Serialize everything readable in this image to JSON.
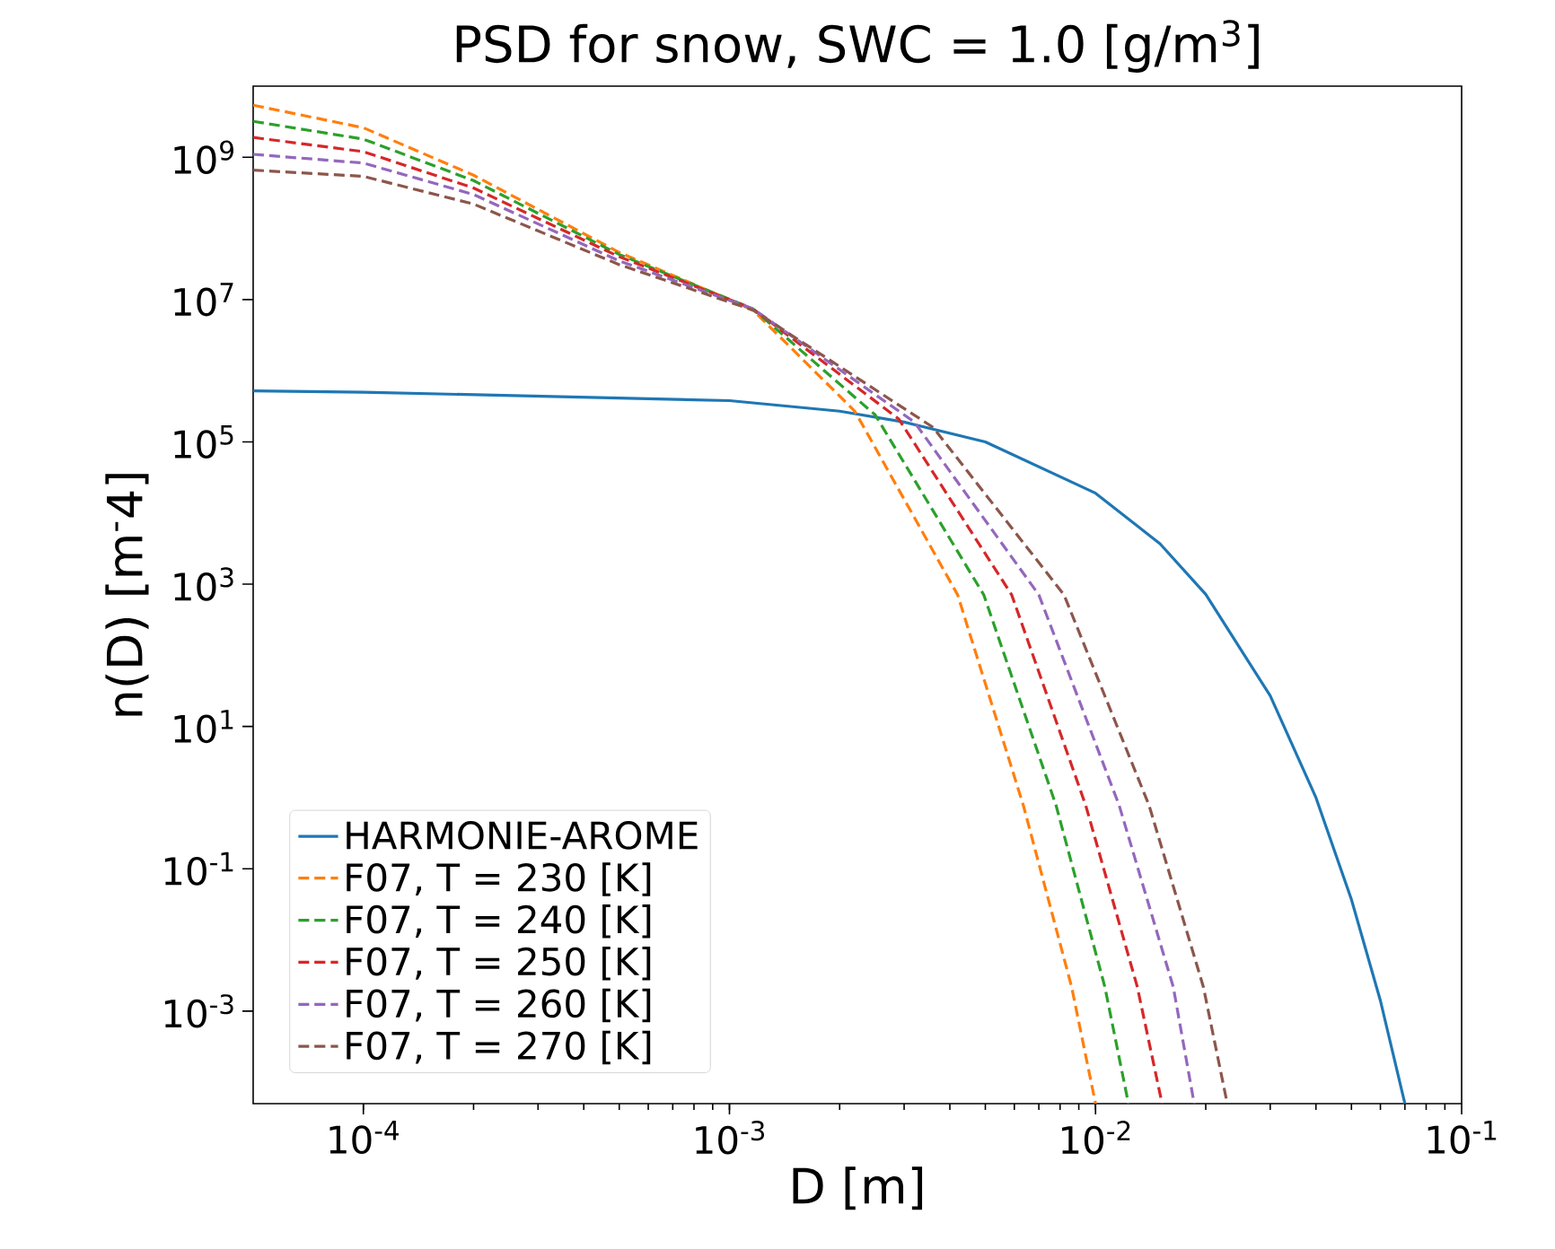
{
  "chart_data": {
    "type": "line",
    "title": "PSD for snow, SWC = 1.0 [g/m$^{3}$]",
    "xlabel": "D [m]",
    "ylabel": "n(D) [m$^{-}$4]",
    "log": "xy",
    "legend": "bottom left",
    "xlim": [
      5e-05,
      0.1
    ],
    "ylim": [
      5e-05,
      10000000000.0
    ],
    "xticks": [
      {
        "value": 0.0001,
        "label": "10$^{-4}$"
      },
      {
        "value": 0.001,
        "label": "10$^{-3}$"
      },
      {
        "value": 0.01,
        "label": "10$^{-2}$"
      },
      {
        "value": 0.1,
        "label": "10$^{-1}$"
      }
    ],
    "yticks": [
      {
        "value": 0.001,
        "label": "10$^{-3}$"
      },
      {
        "value": 0.1,
        "label": "10$^{-1}$"
      },
      {
        "value": 10,
        "label": "10$^{1}$"
      },
      {
        "value": 1000,
        "label": "10$^{3}$"
      },
      {
        "value": 100000,
        "label": "10$^{5}$"
      },
      {
        "value": 10000000,
        "label": "10$^{7}$"
      },
      {
        "value": 1000000000,
        "label": "10$^{9}$"
      }
    ],
    "series": [
      {
        "name": "HARMONIE-AROME",
        "color": "#1f77b4",
        "line_style": "solid",
        "x": [
          5e-05,
          0.0001,
          0.001,
          0.002,
          0.003,
          0.005,
          0.01,
          0.015,
          0.02,
          0.03,
          0.04,
          0.05,
          0.06,
          0.07
        ],
        "values": [
          520000,
          500000,
          380000,
          270000,
          190000,
          100000,
          19000,
          3700,
          720,
          27,
          1.0,
          0.037,
          0.0014,
          5e-05
        ]
      },
      {
        "name": "F07, T = 230 [K]",
        "color": "#ff7f0e",
        "line_style": "dashed",
        "x": [
          5e-05,
          0.0001,
          0.0002,
          0.0005,
          0.001,
          0.00116,
          0.0022,
          0.0042,
          0.00635,
          0.0086,
          0.01
        ],
        "values": [
          5400000000.0,
          2600000000.0,
          560000000.0,
          46000000.0,
          10000000.0,
          7100000.0,
          270000,
          710,
          0.78,
          0.0022,
          5e-05
        ]
      },
      {
        "name": "F07, T = 240 [K]",
        "color": "#2ca02c",
        "line_style": "dashed",
        "x": [
          5e-05,
          0.0001,
          0.0002,
          0.0005,
          0.00116,
          0.0025,
          0.00495,
          0.0078,
          0.0106,
          0.0123
        ],
        "values": [
          3200000000.0,
          1800000000.0,
          470000000.0,
          43000000.0,
          7400000.0,
          240000,
          710,
          0.78,
          0.0022,
          5e-05
        ]
      },
      {
        "name": "F07, T = 250 [K]",
        "color": "#d62728",
        "line_style": "dashed",
        "x": [
          5e-05,
          0.0001,
          0.0002,
          0.0005,
          0.00116,
          0.0029,
          0.0059,
          0.0094,
          0.013,
          0.0152
        ],
        "values": [
          1900000000.0,
          1200000000.0,
          370000000.0,
          40000000.0,
          7400000.0,
          210000,
          710,
          0.78,
          0.0022,
          5e-05
        ]
      },
      {
        "name": "F07, T = 260 [K]",
        "color": "#9467bd",
        "line_style": "dashed",
        "x": [
          5e-05,
          0.0001,
          0.0002,
          0.0005,
          0.00116,
          0.0032,
          0.007,
          0.0116,
          0.0163,
          0.0186
        ],
        "values": [
          1100000000.0,
          830000000.0,
          300000000.0,
          35000000.0,
          7400000.0,
          190000,
          710,
          0.78,
          0.0022,
          5e-05
        ]
      },
      {
        "name": "F07, T = 270 [K]",
        "color": "#8c564b",
        "line_style": "dashed",
        "x": [
          5e-05,
          0.0001,
          0.0002,
          0.0005,
          0.00116,
          0.0036,
          0.0082,
          0.014,
          0.0197,
          0.0229
        ],
        "values": [
          660000000.0,
          540000000.0,
          220000000.0,
          31000000.0,
          7100000.0,
          160000,
          710,
          0.78,
          0.0022,
          5e-05
        ]
      }
    ]
  }
}
